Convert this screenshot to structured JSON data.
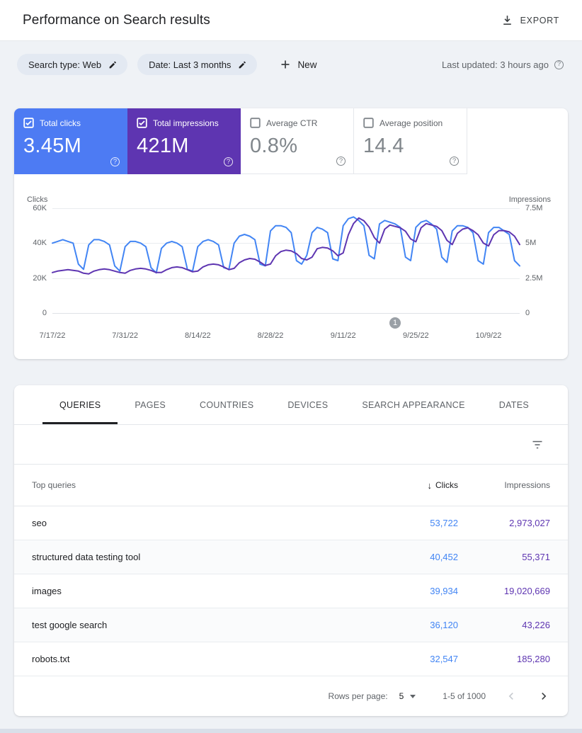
{
  "header": {
    "title": "Performance on Search results",
    "export_label": "EXPORT"
  },
  "filters": {
    "search_type_chip": "Search type: Web",
    "date_chip": "Date: Last 3 months",
    "new_label": "New",
    "last_updated": "Last updated: 3 hours ago"
  },
  "metrics": [
    {
      "label": "Total clicks",
      "value": "3.45M",
      "checked": true,
      "color": "#4d7bf3"
    },
    {
      "label": "Total impressions",
      "value": "421M",
      "checked": true,
      "color": "#5e35b1"
    },
    {
      "label": "Average CTR",
      "value": "0.8%",
      "checked": false
    },
    {
      "label": "Average position",
      "value": "14.4",
      "checked": false
    }
  ],
  "chart_data": {
    "type": "line",
    "tick_labels": [
      "7/17/22",
      "7/31/22",
      "8/14/22",
      "8/28/22",
      "9/11/22",
      "9/25/22",
      "10/9/22"
    ],
    "tick_day_indices": [
      0,
      14,
      28,
      42,
      56,
      70,
      84
    ],
    "left_axis": {
      "title": "Clicks",
      "ticks": [
        "60K",
        "40K",
        "20K",
        "0"
      ],
      "max": 60000
    },
    "right_axis": {
      "title": "Impressions",
      "ticks": [
        "7.5M",
        "5M",
        "2.5M",
        "0"
      ],
      "max": 7500000
    },
    "grid": true,
    "legend": "none",
    "annotation": {
      "label": "1",
      "day_index": 66
    },
    "series": [
      {
        "name": "Clicks",
        "color": "#4285f4",
        "unit": "thousands",
        "axis_max": 60,
        "values": [
          40,
          41,
          42,
          41,
          40,
          28,
          25,
          39,
          42,
          42,
          41,
          39,
          27,
          24,
          38,
          41,
          41,
          40,
          38,
          26,
          23,
          37,
          40,
          41,
          40,
          38,
          25,
          24,
          38,
          41,
          42,
          41,
          39,
          26,
          25,
          40,
          44,
          45,
          44,
          42,
          28,
          27,
          47,
          50,
          50,
          49,
          46,
          30,
          28,
          33,
          46,
          49,
          48,
          46,
          31,
          30,
          50,
          54,
          55,
          53,
          50,
          33,
          31,
          51,
          53,
          52,
          51,
          49,
          32,
          30,
          49,
          52,
          53,
          51,
          48,
          32,
          29,
          47,
          50,
          50,
          49,
          46,
          30,
          28,
          46,
          49,
          49,
          47,
          45,
          30,
          27
        ]
      },
      {
        "name": "Impressions",
        "color": "#5e35b1",
        "unit": "millions",
        "axis_max": 7.5,
        "values": [
          2.9,
          3.0,
          3.05,
          3.1,
          3.05,
          3.0,
          2.85,
          2.8,
          3.0,
          3.1,
          3.15,
          3.1,
          3.0,
          2.9,
          2.85,
          3.05,
          3.15,
          3.2,
          3.15,
          3.05,
          2.9,
          2.9,
          3.1,
          3.25,
          3.3,
          3.25,
          3.1,
          2.95,
          3.0,
          3.3,
          3.45,
          3.5,
          3.45,
          3.3,
          3.1,
          3.2,
          3.6,
          3.8,
          3.9,
          3.85,
          3.65,
          3.4,
          3.5,
          4.1,
          4.4,
          4.5,
          4.45,
          4.25,
          3.9,
          3.8,
          4.0,
          4.6,
          4.7,
          4.65,
          4.45,
          4.1,
          4.3,
          5.6,
          6.4,
          6.8,
          6.6,
          6.15,
          5.4,
          5.0,
          6.0,
          6.3,
          6.2,
          6.1,
          5.85,
          5.3,
          5.1,
          6.1,
          6.4,
          6.3,
          6.2,
          5.9,
          5.2,
          4.9,
          5.7,
          6.0,
          6.1,
          5.9,
          5.6,
          5.0,
          4.8,
          5.6,
          5.9,
          5.9,
          5.8,
          5.5,
          4.9
        ]
      }
    ]
  },
  "table": {
    "tabs": [
      "QUERIES",
      "PAGES",
      "COUNTRIES",
      "DEVICES",
      "SEARCH APPEARANCE",
      "DATES"
    ],
    "active_tab": "QUERIES",
    "columns": {
      "queries": "Top queries",
      "clicks": "Clicks",
      "impressions": "Impressions"
    },
    "rows": [
      {
        "query": "seo",
        "clicks": "53,722",
        "impressions": "2,973,027"
      },
      {
        "query": "structured data testing tool",
        "clicks": "40,452",
        "impressions": "55,371"
      },
      {
        "query": "images",
        "clicks": "39,934",
        "impressions": "19,020,669"
      },
      {
        "query": "test google search",
        "clicks": "36,120",
        "impressions": "43,226"
      },
      {
        "query": "robots.txt",
        "clicks": "32,547",
        "impressions": "185,280"
      }
    ],
    "pagination": {
      "rows_per_page_label": "Rows per page:",
      "rows_per_page": "5",
      "range": "1-5 of 1000"
    }
  }
}
